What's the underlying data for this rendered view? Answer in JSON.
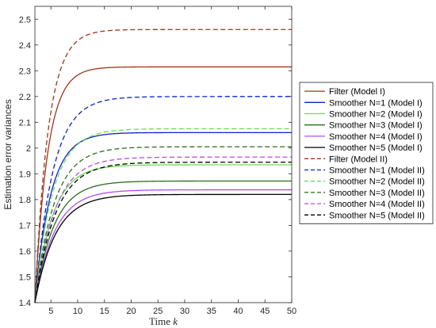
{
  "chart_data": {
    "type": "line",
    "xlabel_text": "Time ",
    "xlabel_var": "k",
    "ylabel": "Estimation error variances",
    "xlim": [
      2,
      50
    ],
    "ylim": [
      1.4,
      2.55
    ],
    "xticks": [
      5,
      10,
      15,
      20,
      25,
      30,
      35,
      40,
      45,
      50
    ],
    "yticks": [
      1.4,
      1.5,
      1.6,
      1.7,
      1.8,
      1.9,
      2.0,
      2.1,
      2.2,
      2.3,
      2.4,
      2.5
    ],
    "ytick_labels": [
      "1.4",
      "1.5",
      "1.6",
      "1.7",
      "1.8",
      "1.9",
      "2",
      "2.1",
      "2.2",
      "2.3",
      "2.4",
      "2.5"
    ],
    "grid": false,
    "legend_position": "outside-right",
    "start": {
      "x": 2,
      "y": 1.4
    },
    "series": [
      {
        "name": "Filter (Model I)",
        "color": "#a0351a",
        "dash": "solid",
        "final": 2.315,
        "rate": 0.42
      },
      {
        "name": "Smoother N=1 (Model I)",
        "color": "#0a22c9",
        "dash": "solid",
        "final": 2.06,
        "rate": 0.34
      },
      {
        "name": "Smoother N=2 (Model I)",
        "color": "#66e04a",
        "dash": "solid",
        "final": 1.935,
        "rate": 0.3
      },
      {
        "name": "Smoother N=3 (Model I)",
        "color": "#2a6e1a",
        "dash": "solid",
        "final": 1.872,
        "rate": 0.28
      },
      {
        "name": "Smoother N=4 (Model I)",
        "color": "#b04ef0",
        "dash": "solid",
        "final": 1.838,
        "rate": 0.27
      },
      {
        "name": "Smoother N=5 (Model I)",
        "color": "#000000",
        "dash": "solid",
        "final": 1.82,
        "rate": 0.26
      },
      {
        "name": "Filter (Model II)",
        "color": "#a0351a",
        "dash": "dashed",
        "final": 2.46,
        "rate": 0.4
      },
      {
        "name": "Smoother N=1 (Model II)",
        "color": "#0a22c9",
        "dash": "dashed",
        "final": 2.2,
        "rate": 0.3
      },
      {
        "name": "Smoother N=2 (Model II)",
        "color": "#66e04a",
        "dash": "dashed",
        "final": 2.075,
        "rate": 0.3
      },
      {
        "name": "Smoother N=3 (Model II)",
        "color": "#2a6e1a",
        "dash": "dashed",
        "final": 2.005,
        "rate": 0.28
      },
      {
        "name": "Smoother N=4 (Model II)",
        "color": "#b04ef0",
        "dash": "dashed",
        "final": 1.965,
        "rate": 0.27
      },
      {
        "name": "Smoother N=5 (Model II)",
        "color": "#000000",
        "dash": "dashed",
        "final": 1.945,
        "rate": 0.26
      }
    ]
  }
}
